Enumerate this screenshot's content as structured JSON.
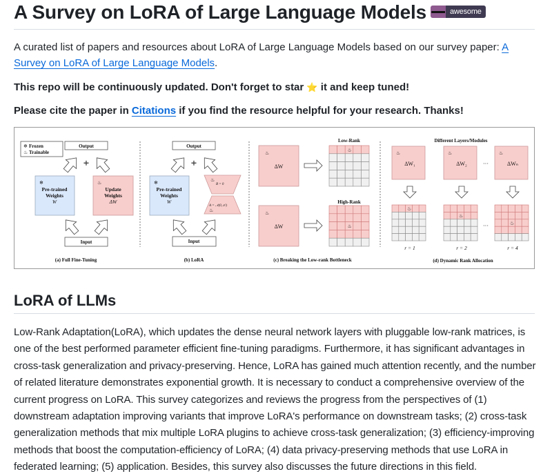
{
  "header": {
    "title": "A Survey on LoRA of Large Language Models",
    "badge": {
      "icon": "sunglasses-icon",
      "label": "awesome",
      "left_color": "#8e5a8f",
      "right_color": "#3f3a52"
    }
  },
  "intro": {
    "text_before_link": "A curated list of papers and resources about LoRA of Large Language Models based on our survey paper: ",
    "paper_link": "A Survey on LoRA of Large Language Models",
    "text_after_link": "."
  },
  "notice": {
    "before_star": "This repo will be continuously updated. Don't forget to star ",
    "star_icon": "⭐",
    "after_star": " it and keep tuned!"
  },
  "cite": {
    "before_link": "Please cite the paper in ",
    "link": "Citations",
    "after_link": " if you find the resource helpful for your research. Thanks!"
  },
  "figure": {
    "legend": {
      "frozen": "Frozen",
      "trainable": "Trainable"
    },
    "a": {
      "output": "Output",
      "input": "Input",
      "pretrained": [
        "Pre-trained",
        "Weights",
        "W"
      ],
      "update": [
        "Update",
        "Weights",
        "ΔW"
      ],
      "caption": "(a) Full Fine-Tuning"
    },
    "b": {
      "output": "Output",
      "input": "Input",
      "pretrained": [
        "Pre-trained",
        "Weights",
        "W"
      ],
      "b_label": "B = 0",
      "a_label": "A = 𝒩(0, σ²)",
      "caption": "(b) LoRA"
    },
    "c": {
      "delta": "ΔW",
      "low_rank": "Low-Rank",
      "high_rank": "High-Rank",
      "caption": "(c) Breaking the Low-rank Bottleneck"
    },
    "d": {
      "title": "Different Layers/Modules",
      "deltas": [
        "ΔW₁",
        "ΔW₂",
        "ΔWₙ"
      ],
      "ellipsis": "···",
      "ranks": [
        "r = 1",
        "r = 2",
        "r = 4"
      ],
      "caption": "(d) Dynamic Rank Allocation"
    },
    "colors": {
      "frozen": "#dae8fc",
      "trainable": "#f8cecc",
      "grid_empty": "#f0f0f0"
    }
  },
  "section": {
    "heading": "LoRA of LLMs",
    "paragraph": "Low-Rank Adaptation(LoRA), which updates the dense neural network layers with pluggable low-rank matrices, is one of the best performed parameter efficient fine-tuning paradigms. Furthermore, it has significant advantages in cross-task generalization and privacy-preserving. Hence, LoRA has gained much attention recently, and the number of related literature demonstrates exponential growth. It is necessary to conduct a comprehensive overview of the current progress on LoRA. This survey categorizes and reviews the progress from the perspectives of (1) downstream adaptation improving variants that improve LoRA's performance on downstream tasks; (2) cross-task generalization methods that mix multiple LoRA plugins to achieve cross-task generalization; (3) efficiency-improving methods that boost the computation-efficiency of LoRA; (4) data privacy-preserving methods that use LoRA in federated learning; (5) application. Besides, this survey also discusses the future directions in this field."
  }
}
